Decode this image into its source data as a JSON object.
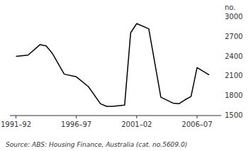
{
  "chart_data": {
    "type": "line",
    "ylabel": "no.",
    "annotations": [
      "Source: ABS: Housing Finance, Australia (cat. no.5609.0)"
    ],
    "x": [
      1991.5,
      1992.5,
      1993.5,
      1994.0,
      1994.5,
      1995.5,
      1996.5,
      1997.5,
      1998.5,
      1999.0,
      1999.5,
      2000.5,
      2001.0,
      2001.5,
      2002.5,
      2003.5,
      2004.5,
      2005.0,
      2005.5,
      2006.0,
      2006.5,
      2007.5
    ],
    "values": [
      2400,
      2420,
      2580,
      2560,
      2450,
      2130,
      2090,
      1940,
      1680,
      1640,
      1640,
      1660,
      2760,
      2900,
      2820,
      1780,
      1690,
      1680,
      1740,
      1790,
      2230,
      2120
    ],
    "color": "#000000",
    "xlim": [
      1991.0,
      2008.5
    ],
    "xticks": [
      {
        "value": 1991.5,
        "label": "1991–92"
      },
      {
        "value": 1996.5,
        "label": "1996–97"
      },
      {
        "value": 2001.5,
        "label": "2001–02"
      },
      {
        "value": 2006.5,
        "label": "2006–07"
      }
    ],
    "ylim": [
      1500,
      3000
    ],
    "yticks": [
      1500,
      1800,
      2100,
      2400,
      2700,
      3000
    ],
    "grid": false
  }
}
